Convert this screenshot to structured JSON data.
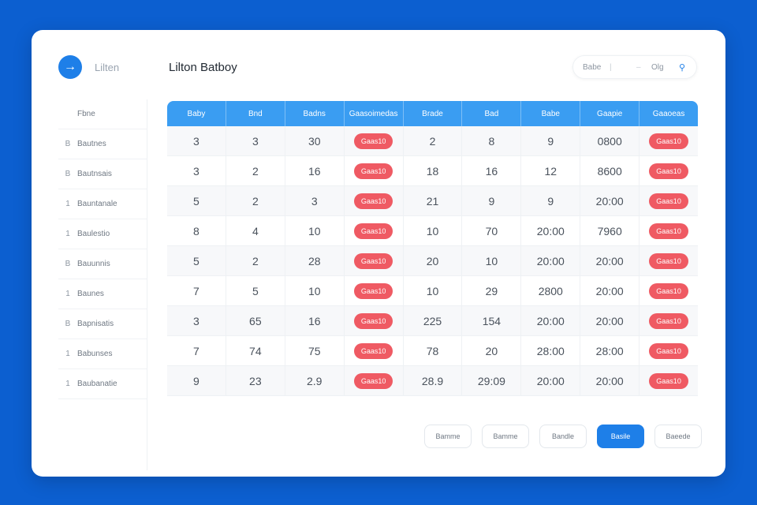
{
  "header": {
    "brand": "Lilten",
    "title": "Lilton Batboy",
    "logo_icon": "arrow-right-icon",
    "controls": {
      "left_label": "Babe",
      "right_label": "Olg"
    }
  },
  "sidebar": {
    "items": [
      {
        "glyph": "",
        "label": "Fbne"
      },
      {
        "glyph": "B",
        "label": "Bautnes"
      },
      {
        "glyph": "B",
        "label": "Bautnsais"
      },
      {
        "glyph": "1",
        "label": "Bauntanale"
      },
      {
        "glyph": "1",
        "label": "Baulestio"
      },
      {
        "glyph": "B",
        "label": "Bauunnis"
      },
      {
        "glyph": "1",
        "label": "Baunes"
      },
      {
        "glyph": "B",
        "label": "Bapnisatis"
      },
      {
        "glyph": "1",
        "label": "Babunses"
      },
      {
        "glyph": "1",
        "label": "Baubanatie"
      }
    ]
  },
  "table": {
    "columns": [
      "Baby",
      "Bnd",
      "Badns",
      "Gaasoimedas",
      "Brade",
      "Bad",
      "Babe",
      "Gaapie",
      "Gaaoeas"
    ],
    "rows": [
      [
        "3",
        "3",
        "30",
        "Gaas10",
        "2",
        "8",
        "9",
        "0800",
        "Gaas10"
      ],
      [
        "3",
        "2",
        "16",
        "Gaas10",
        "18",
        "16",
        "12",
        "8600",
        "Gaas10"
      ],
      [
        "5",
        "2",
        "3",
        "Gaas10",
        "21",
        "9",
        "9",
        "20:00",
        "Gaas10"
      ],
      [
        "8",
        "4",
        "10",
        "Gaas10",
        "10",
        "70",
        "20:00",
        "7960",
        "Gaas10"
      ],
      [
        "5",
        "2",
        "28",
        "Gaas10",
        "20",
        "10",
        "20:00",
        "20:00",
        "Gaas10"
      ],
      [
        "7",
        "5",
        "10",
        "Gaas10",
        "10",
        "29",
        "2800",
        "20:00",
        "Gaas10"
      ],
      [
        "3",
        "65",
        "16",
        "Gaas10",
        "225",
        "154",
        "20:00",
        "20:00",
        "Gaas10"
      ],
      [
        "7",
        "74",
        "75",
        "Gaas10",
        "78",
        "20",
        "28:00",
        "28:00",
        "Gaas10"
      ],
      [
        "9",
        "23",
        "2.9",
        "Gaas10",
        "28.9",
        "29:09",
        "20:00",
        "20:00",
        "Gaas10"
      ]
    ],
    "pill_color": "#ef5a63",
    "header_color": "#3a9df2"
  },
  "footer": {
    "buttons": [
      "Bamme",
      "Bamme",
      "Bandle",
      "Basile",
      "Baeede"
    ],
    "primary_index": 3
  }
}
